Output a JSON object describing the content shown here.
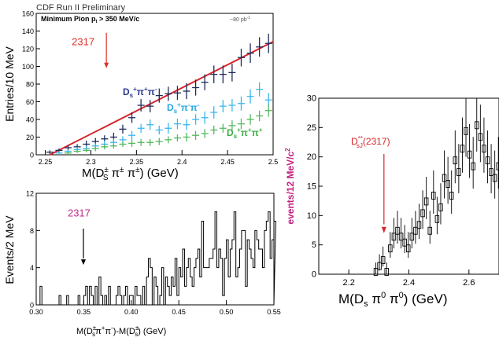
{
  "header": {
    "text": "CDF Run II Preliminary"
  },
  "chart_data": [
    {
      "type": "scatter",
      "panel": "top-left",
      "title": "Minimum Pion pt > 350 MeV/c",
      "title_main": "Minimum Pion p",
      "title_sub": "t",
      "title_rest": " > 350 MeV/c",
      "corner_note": "~80 pb",
      "corner_note_sup": "-1",
      "xlabel": "M(Ds± π± π±)  (GeV)",
      "ylabel": "Entries/10 MeV",
      "xlim": [
        2.24,
        2.5
      ],
      "ylim": [
        0,
        160
      ],
      "xticks": [
        2.25,
        2.3,
        2.35,
        2.4,
        2.45,
        2.5
      ],
      "xtick_labels": [
        "2.25",
        "2.3",
        "2.35",
        "2.4",
        "2.45",
        "2.5"
      ],
      "yticks": [
        0,
        20,
        40,
        60,
        80,
        100,
        120,
        140,
        160
      ],
      "ytick_labels": [
        "0",
        "20",
        "40",
        "60",
        "80",
        "100",
        "120",
        "140",
        "160"
      ],
      "annotation": {
        "text": "2317",
        "x": 2.317,
        "color": "#e0302a"
      },
      "fit_line": {
        "x": [
          2.255,
          2.5
        ],
        "y": [
          0,
          128
        ],
        "color": "#d8262b"
      },
      "series": [
        {
          "name": "Ds+π+π-",
          "label_color": "#2b3a8f",
          "marker_color": "#1e2a5a",
          "x": [
            2.255,
            2.265,
            2.275,
            2.285,
            2.295,
            2.305,
            2.315,
            2.325,
            2.335,
            2.345,
            2.355,
            2.365,
            2.375,
            2.385,
            2.395,
            2.405,
            2.415,
            2.425,
            2.435,
            2.445,
            2.455,
            2.465,
            2.475,
            2.485,
            2.495
          ],
          "y": [
            3,
            5,
            8,
            9,
            12,
            15,
            18,
            20,
            29,
            42,
            56,
            55,
            67,
            69,
            70,
            72,
            76,
            82,
            91,
            91,
            93,
            110,
            115,
            122,
            126
          ],
          "err": [
            2,
            2,
            3,
            3,
            4,
            4,
            4,
            5,
            5,
            6,
            7,
            7,
            8,
            8,
            8,
            9,
            9,
            9,
            10,
            10,
            10,
            10,
            11,
            11,
            11
          ]
        },
        {
          "name": "Ds+π-π-",
          "label_color": "#29a8e0",
          "marker_color": "#3ab7ec",
          "x": [
            2.265,
            2.275,
            2.285,
            2.295,
            2.305,
            2.315,
            2.325,
            2.335,
            2.345,
            2.355,
            2.365,
            2.375,
            2.385,
            2.395,
            2.405,
            2.415,
            2.425,
            2.435,
            2.445,
            2.455,
            2.465,
            2.475,
            2.485,
            2.495
          ],
          "y": [
            2,
            4,
            6,
            7,
            10,
            12,
            14,
            17,
            22,
            30,
            34,
            28,
            30,
            35,
            34,
            40,
            42,
            48,
            55,
            56,
            58,
            66,
            74,
            62
          ],
          "err": [
            2,
            2,
            3,
            3,
            3,
            4,
            4,
            4,
            5,
            5,
            6,
            5,
            6,
            6,
            6,
            6,
            7,
            7,
            7,
            7,
            8,
            8,
            8,
            8
          ]
        },
        {
          "name": "Ds+π+π+",
          "label_color": "#3dac46",
          "marker_color": "#55b85c",
          "x": [
            2.275,
            2.285,
            2.295,
            2.305,
            2.315,
            2.325,
            2.335,
            2.345,
            2.355,
            2.365,
            2.375,
            2.385,
            2.395,
            2.405,
            2.415,
            2.425,
            2.435,
            2.445,
            2.455,
            2.465,
            2.475,
            2.485,
            2.495
          ],
          "y": [
            2,
            4,
            5,
            7,
            9,
            10,
            12,
            13,
            14,
            14,
            15,
            17,
            19,
            20,
            22,
            24,
            28,
            30,
            33,
            35,
            40,
            44,
            50
          ],
          "err": [
            2,
            2,
            2,
            3,
            3,
            3,
            3,
            4,
            4,
            4,
            4,
            4,
            4,
            5,
            5,
            5,
            5,
            5,
            6,
            6,
            6,
            6,
            7
          ]
        }
      ]
    },
    {
      "type": "bar",
      "panel": "bottom-left",
      "xlabel": "M(Ds±π+π-)-M(Ds±) (GeV)",
      "ylabel": "Events/2 MeV",
      "xlim": [
        0.3,
        0.55
      ],
      "ylim": [
        0,
        12
      ],
      "xticks": [
        0.3,
        0.35,
        0.4,
        0.45,
        0.5,
        0.55
      ],
      "xtick_labels": [
        "0.30",
        "0.35",
        "0.40",
        "0.45",
        "0.50",
        "0.55"
      ],
      "yticks": [
        0,
        4,
        8,
        12
      ],
      "ytick_labels": [
        "0",
        "4",
        "8",
        "12"
      ],
      "annotation": {
        "text": "2317",
        "x": 0.348,
        "color": "#c02a8a"
      },
      "bin_width": 0.002,
      "bin_start": 0.3,
      "values": [
        0,
        0,
        2,
        0,
        0,
        0,
        0,
        0,
        0,
        0,
        0,
        0,
        1,
        0,
        0,
        0,
        1,
        0,
        0,
        0,
        0,
        0,
        1,
        0,
        0,
        1,
        2,
        0,
        2,
        1,
        0,
        2,
        0,
        3,
        1,
        0,
        1,
        0,
        2,
        0,
        0,
        0,
        1,
        2,
        1,
        0,
        1,
        2,
        0,
        1,
        1,
        0,
        2,
        1,
        1,
        0,
        2,
        0,
        3,
        5,
        4,
        0,
        3,
        2,
        0,
        1,
        4,
        0,
        3,
        2,
        1,
        3,
        2,
        5,
        1,
        4,
        3,
        6,
        2,
        4,
        5,
        3,
        2,
        4,
        5,
        6,
        3,
        9,
        4,
        4,
        4,
        5,
        5,
        6,
        10,
        4,
        6,
        5,
        1,
        5,
        7,
        3,
        6,
        7,
        10,
        3,
        4,
        6,
        8,
        8,
        2,
        7,
        6,
        5,
        4,
        8,
        7,
        6,
        6,
        4,
        8,
        9,
        10,
        5,
        7,
        9
      ]
    },
    {
      "type": "line",
      "panel": "right",
      "xlabel": "M(Ds π0 π0)  (GeV)",
      "ylabel": "events/12 MeV/c²",
      "xlim": [
        2.1,
        2.7
      ],
      "ylim": [
        0,
        30
      ],
      "xticks": [
        2.2,
        2.4,
        2.6
      ],
      "xtick_labels": [
        "2.2",
        "2.4",
        "2.6"
      ],
      "yticks": [
        0,
        5,
        10,
        15,
        20,
        25,
        30
      ],
      "ytick_labels": [
        "0",
        "5",
        "10",
        "15",
        "20",
        "25",
        "30"
      ],
      "annotation": {
        "text": "D**sJ(2317)",
        "x": 2.317,
        "color": "#d8262b"
      },
      "bin_width": 0.012,
      "x": [
        2.29,
        2.302,
        2.314,
        2.326,
        2.338,
        2.35,
        2.362,
        2.374,
        2.386,
        2.398,
        2.41,
        2.422,
        2.434,
        2.446,
        2.458,
        2.47,
        2.482,
        2.494,
        2.506,
        2.518,
        2.53,
        2.542,
        2.554,
        2.566,
        2.578,
        2.59,
        2.602,
        2.614,
        2.626,
        2.638,
        2.65,
        2.662,
        2.674,
        2.686,
        2.698
      ],
      "y": [
        1,
        2,
        3,
        1,
        5,
        7,
        8,
        7,
        6,
        5,
        7,
        8,
        9,
        11,
        13,
        8,
        14,
        10,
        12,
        17,
        16,
        14,
        20,
        18,
        22,
        25,
        21,
        19,
        26,
        24,
        22,
        20,
        18,
        17,
        19
      ],
      "err": [
        1,
        1.4,
        1.7,
        1,
        2.2,
        2.6,
        2.8,
        2.6,
        2.4,
        2.2,
        2.6,
        2.8,
        3,
        3.3,
        3.6,
        2.8,
        3.7,
        3.2,
        3.5,
        4.1,
        4,
        3.7,
        4.5,
        4.2,
        4.7,
        5,
        4.6,
        4.4,
        5.1,
        4.9,
        4.7,
        4.5,
        4.2,
        4.1,
        4.4
      ]
    }
  ]
}
